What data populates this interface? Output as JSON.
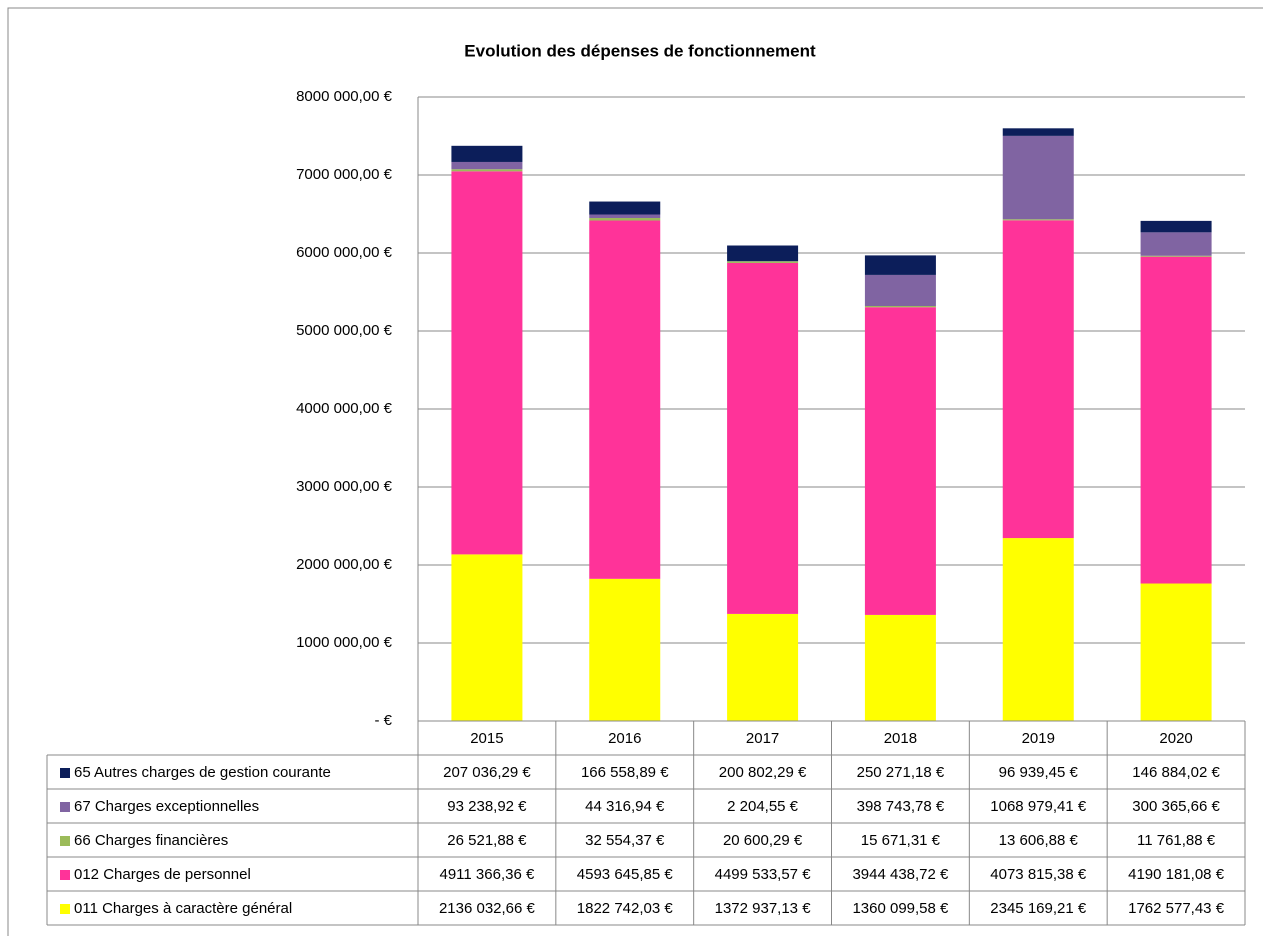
{
  "chart_data": {
    "type": "stacked_bar",
    "title": "Evolution des dépenses de fonctionnement",
    "categories": [
      "2015",
      "2016",
      "2017",
      "2018",
      "2019",
      "2020"
    ],
    "ylim": [
      0,
      8000000
    ],
    "yticks": [
      {
        "value": 0,
        "label": "-  €"
      },
      {
        "value": 1000000,
        "label": "1000 000,00 €"
      },
      {
        "value": 2000000,
        "label": "2000 000,00 €"
      },
      {
        "value": 3000000,
        "label": "3000 000,00 €"
      },
      {
        "value": 4000000,
        "label": "4000 000,00 €"
      },
      {
        "value": 5000000,
        "label": "5000 000,00 €"
      },
      {
        "value": 6000000,
        "label": "6000 000,00 €"
      },
      {
        "value": 7000000,
        "label": "7000 000,00 €"
      },
      {
        "value": 8000000,
        "label": "8000 000,00 €"
      }
    ],
    "grid": true,
    "series": [
      {
        "name": "011 Charges à caractère général",
        "color": "#ffff00",
        "values": [
          2136032.66,
          1822742.03,
          1372937.13,
          1360099.58,
          2345169.21,
          1762577.43
        ],
        "value_labels": [
          "2136 032,66 €",
          "1822 742,03 €",
          "1372 937,13 €",
          "1360 099,58 €",
          "2345 169,21 €",
          "1762 577,43 €"
        ]
      },
      {
        "name": "012 Charges de personnel",
        "color": "#ff3399",
        "values": [
          4911366.36,
          4593645.85,
          4499533.57,
          3944438.72,
          4073815.38,
          4190181.08
        ],
        "value_labels": [
          "4911 366,36 €",
          "4593 645,85 €",
          "4499 533,57 €",
          "3944 438,72 €",
          "4073 815,38 €",
          "4190 181,08 €"
        ]
      },
      {
        "name": "66  Charges financières",
        "color": "#9bbb59",
        "values": [
          26521.88,
          32554.37,
          20600.29,
          15671.31,
          13606.88,
          11761.88
        ],
        "value_labels": [
          "26 521,88 €",
          "32 554,37 €",
          "20 600,29 €",
          "15 671,31 €",
          "13 606,88 €",
          "11 761,88 €"
        ]
      },
      {
        "name": "67 Charges exceptionnelles",
        "color": "#8064a2",
        "values": [
          93238.92,
          44316.94,
          2204.55,
          398743.78,
          1068979.41,
          300365.66
        ],
        "value_labels": [
          "93 238,92 €",
          "44 316,94 €",
          "2 204,55 €",
          "398 743,78 €",
          "1068 979,41 €",
          "300 365,66 €"
        ]
      },
      {
        "name": "65 Autres charges de gestion courante",
        "color": "#0c1e5a",
        "values": [
          207036.29,
          166558.89,
          200802.29,
          250271.18,
          96939.45,
          146884.02
        ],
        "value_labels": [
          "207 036,29 €",
          "166 558,89 €",
          "200 802,29 €",
          "250 271,18 €",
          "96 939,45 €",
          "146 884,02 €"
        ]
      }
    ]
  }
}
